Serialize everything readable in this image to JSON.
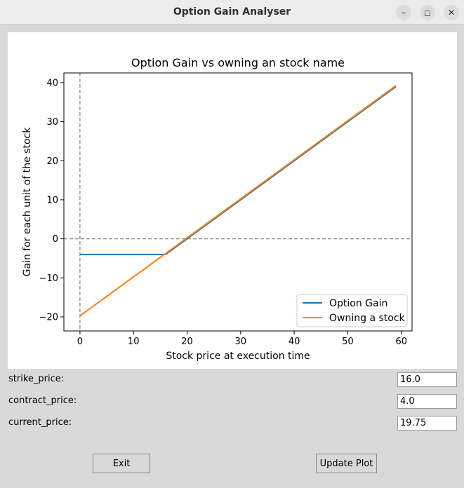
{
  "window": {
    "title": "Option Gain Analyser",
    "minimize_icon": "minimize-icon",
    "maximize_icon": "maximize-icon",
    "close_icon": "close-icon"
  },
  "chart_data": {
    "type": "line",
    "title": "Option Gain vs owning an stock name",
    "xlabel": "Stock price at execution time",
    "ylabel": "Gain for each unit of the stock",
    "xlim": [
      -3,
      62
    ],
    "ylim": [
      -23.6,
      42.5
    ],
    "xticks": [
      0,
      10,
      20,
      30,
      40,
      50,
      60
    ],
    "yticks": [
      -20,
      -10,
      0,
      10,
      20,
      30,
      40
    ],
    "legend": "lower-right",
    "grid": false,
    "reference_lines": {
      "vertical_x": 0,
      "horizontal_y": 0,
      "style": "dashed",
      "color": "#808080"
    },
    "series": [
      {
        "name": "Option Gain",
        "color": "#1f77b4",
        "x": [
          0,
          16,
          59
        ],
        "y": [
          -4,
          -4,
          39
        ]
      },
      {
        "name": "Owning a stock",
        "color": "#ff7f0e",
        "x": [
          0,
          59
        ],
        "y": [
          -19.75,
          39.25
        ]
      }
    ]
  },
  "form": {
    "strike_label": "strike_price:",
    "strike_value": "16.0",
    "contract_label": "contract_price:",
    "contract_value": "4.0",
    "current_label": "current_price:",
    "current_value": "19.75"
  },
  "buttons": {
    "exit": "Exit",
    "update": "Update Plot"
  }
}
